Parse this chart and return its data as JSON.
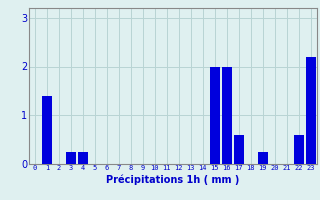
{
  "hours": [
    0,
    1,
    2,
    3,
    4,
    5,
    6,
    7,
    8,
    9,
    10,
    11,
    12,
    13,
    14,
    15,
    16,
    17,
    18,
    19,
    20,
    21,
    22,
    23
  ],
  "values": [
    0,
    1.4,
    0,
    0.25,
    0.25,
    0,
    0,
    0,
    0,
    0,
    0,
    0,
    0,
    0,
    0,
    2.0,
    2.0,
    0.6,
    0,
    0.25,
    0,
    0,
    0.6,
    2.2
  ],
  "bar_color": "#0000dd",
  "background_color": "#dff0f0",
  "grid_color": "#b8d4d4",
  "xlabel": "Précipitations 1h ( mm )",
  "xlabel_color": "#0000cc",
  "tick_color": "#0000cc",
  "axis_color": "#888888",
  "ylim": [
    0,
    3.2
  ],
  "yticks": [
    0,
    1,
    2,
    3
  ],
  "xlim": [
    -0.5,
    23.5
  ]
}
